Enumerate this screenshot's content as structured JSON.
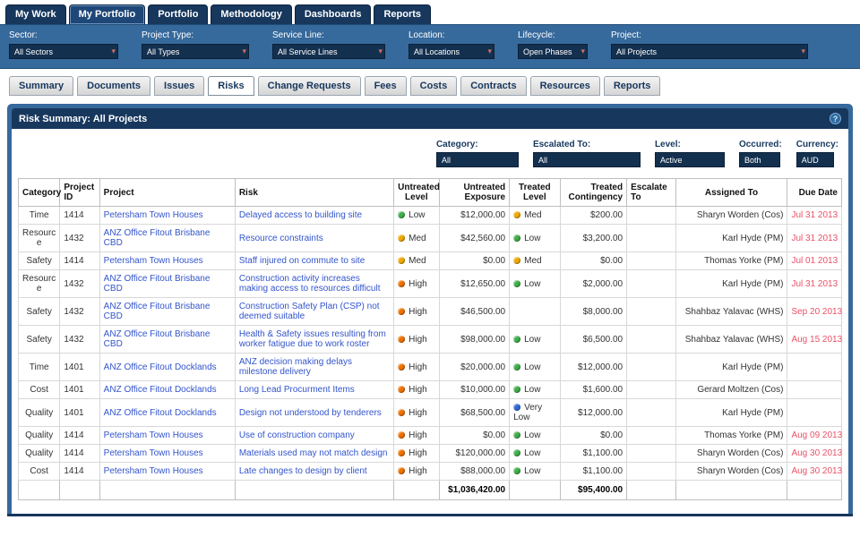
{
  "main_nav": {
    "tabs": [
      {
        "label": "My Work",
        "active": false
      },
      {
        "label": "My Portfolio",
        "active": true
      },
      {
        "label": "Portfolio",
        "active": false
      },
      {
        "label": "Methodology",
        "active": false
      },
      {
        "label": "Dashboards",
        "active": false
      },
      {
        "label": "Reports",
        "active": false
      }
    ]
  },
  "filters": [
    {
      "label": "Sector:",
      "value": "All Sectors"
    },
    {
      "label": "Project Type:",
      "value": "All Types"
    },
    {
      "label": "Service Line:",
      "value": "All Service Lines"
    },
    {
      "label": "Location:",
      "value": "All Locations"
    },
    {
      "label": "Lifecycle:",
      "value": "Open Phases"
    },
    {
      "label": "Project:",
      "value": "All Projects"
    }
  ],
  "sub_nav": {
    "tabs": [
      {
        "label": "Summary",
        "active": false
      },
      {
        "label": "Documents",
        "active": false
      },
      {
        "label": "Issues",
        "active": false
      },
      {
        "label": "Risks",
        "active": true
      },
      {
        "label": "Change Requests",
        "active": false
      },
      {
        "label": "Fees",
        "active": false
      },
      {
        "label": "Costs",
        "active": false
      },
      {
        "label": "Contracts",
        "active": false
      },
      {
        "label": "Resources",
        "active": false
      },
      {
        "label": "Reports",
        "active": false
      }
    ]
  },
  "panel": {
    "title": "Risk Summary: All Projects",
    "help_icon": "?"
  },
  "table_filters": [
    {
      "label": "Category:",
      "value": "All"
    },
    {
      "label": "Escalated To:",
      "value": "All"
    },
    {
      "label": "Level:",
      "value": "Active"
    },
    {
      "label": "Occurred:",
      "value": "Both"
    },
    {
      "label": "Currency:",
      "value": "AUD"
    }
  ],
  "level_colors": {
    "Low": "#3fae49",
    "Med": "#f0a800",
    "High": "#ef7100",
    "Very Low": "#2f6bd7"
  },
  "table": {
    "headers": [
      "Category",
      "Project ID",
      "Project",
      "Risk",
      "Untreated Level",
      "Untreated Exposure",
      "Treated Level",
      "Treated Contingency",
      "Escalate To",
      "Assigned To",
      "Due Date"
    ],
    "rows": [
      {
        "category": "Time",
        "project_id": "1414",
        "project": "Petersham Town Houses",
        "risk": "Delayed access to building site",
        "untreated_level": "Low",
        "untreated_exposure": "$12,000.00",
        "treated_level": "Med",
        "treated_contingency": "$200.00",
        "escalate_to": "",
        "assigned_to": "Sharyn Worden (Cos)",
        "due_date": "Jul 31 2013"
      },
      {
        "category": "Resource",
        "project_id": "1432",
        "project": "ANZ Office Fitout Brisbane CBD",
        "risk": "Resource constraints",
        "untreated_level": "Med",
        "untreated_exposure": "$42,560.00",
        "treated_level": "Low",
        "treated_contingency": "$3,200.00",
        "escalate_to": "",
        "assigned_to": "Karl Hyde (PM)",
        "due_date": "Jul 31 2013"
      },
      {
        "category": "Safety",
        "project_id": "1414",
        "project": "Petersham Town Houses",
        "risk": "Staff injured on commute to site",
        "untreated_level": "Med",
        "untreated_exposure": "$0.00",
        "treated_level": "Med",
        "treated_contingency": "$0.00",
        "escalate_to": "",
        "assigned_to": "Thomas Yorke (PM)",
        "due_date": "Jul 01 2013"
      },
      {
        "category": "Resource",
        "project_id": "1432",
        "project": "ANZ Office Fitout Brisbane CBD",
        "risk": "Construction activity increases making access to resources difficult",
        "untreated_level": "High",
        "untreated_exposure": "$12,650.00",
        "treated_level": "Low",
        "treated_contingency": "$2,000.00",
        "escalate_to": "",
        "assigned_to": "Karl Hyde (PM)",
        "due_date": "Jul 31 2013"
      },
      {
        "category": "Safety",
        "project_id": "1432",
        "project": "ANZ Office Fitout Brisbane CBD",
        "risk": "Construction Safety Plan (CSP) not deemed suitable",
        "untreated_level": "High",
        "untreated_exposure": "$46,500.00",
        "treated_level": "",
        "treated_contingency": "$8,000.00",
        "escalate_to": "",
        "assigned_to": "Shahbaz Yalavac (WHS)",
        "due_date": "Sep 20 2013"
      },
      {
        "category": "Safety",
        "project_id": "1432",
        "project": "ANZ Office Fitout Brisbane CBD",
        "risk": "Health & Safety issues resulting from worker fatigue due to work roster",
        "untreated_level": "High",
        "untreated_exposure": "$98,000.00",
        "treated_level": "Low",
        "treated_contingency": "$6,500.00",
        "escalate_to": "",
        "assigned_to": "Shahbaz Yalavac (WHS)",
        "due_date": "Aug 15 2013"
      },
      {
        "category": "Time",
        "project_id": "1401",
        "project": "ANZ Office Fitout Docklands",
        "risk": "ANZ decision making delays milestone delivery",
        "untreated_level": "High",
        "untreated_exposure": "$20,000.00",
        "treated_level": "Low",
        "treated_contingency": "$12,000.00",
        "escalate_to": "",
        "assigned_to": "Karl Hyde (PM)",
        "due_date": ""
      },
      {
        "category": "Cost",
        "project_id": "1401",
        "project": "ANZ Office Fitout Docklands",
        "risk": "Long Lead Procurment Items",
        "untreated_level": "High",
        "untreated_exposure": "$10,000.00",
        "treated_level": "Low",
        "treated_contingency": "$1,600.00",
        "escalate_to": "",
        "assigned_to": "Gerard Moltzen (Cos)",
        "due_date": ""
      },
      {
        "category": "Quality",
        "project_id": "1401",
        "project": "ANZ Office Fitout Docklands",
        "risk": "Design not understood by tenderers",
        "untreated_level": "High",
        "untreated_exposure": "$68,500.00",
        "treated_level": "Very Low",
        "treated_contingency": "$12,000.00",
        "escalate_to": "",
        "assigned_to": "Karl Hyde (PM)",
        "due_date": ""
      },
      {
        "category": "Quality",
        "project_id": "1414",
        "project": "Petersham Town Houses",
        "risk": "Use of construction company",
        "untreated_level": "High",
        "untreated_exposure": "$0.00",
        "treated_level": "Low",
        "treated_contingency": "$0.00",
        "escalate_to": "",
        "assigned_to": "Thomas Yorke (PM)",
        "due_date": "Aug 09 2013"
      },
      {
        "category": "Quality",
        "project_id": "1414",
        "project": "Petersham Town Houses",
        "risk": "Materials used may not match design",
        "untreated_level": "High",
        "untreated_exposure": "$120,000.00",
        "treated_level": "Low",
        "treated_contingency": "$1,100.00",
        "escalate_to": "",
        "assigned_to": "Sharyn Worden (Cos)",
        "due_date": "Aug 30 2013"
      },
      {
        "category": "Cost",
        "project_id": "1414",
        "project": "Petersham Town Houses",
        "risk": "Late changes to design by client",
        "untreated_level": "High",
        "untreated_exposure": "$88,000.00",
        "treated_level": "Low",
        "treated_contingency": "$1,100.00",
        "escalate_to": "",
        "assigned_to": "Sharyn Worden (Cos)",
        "due_date": "Aug 30 2013"
      }
    ],
    "totals": {
      "untreated_exposure": "$1,036,420.00",
      "treated_contingency": "$95,400.00"
    }
  }
}
